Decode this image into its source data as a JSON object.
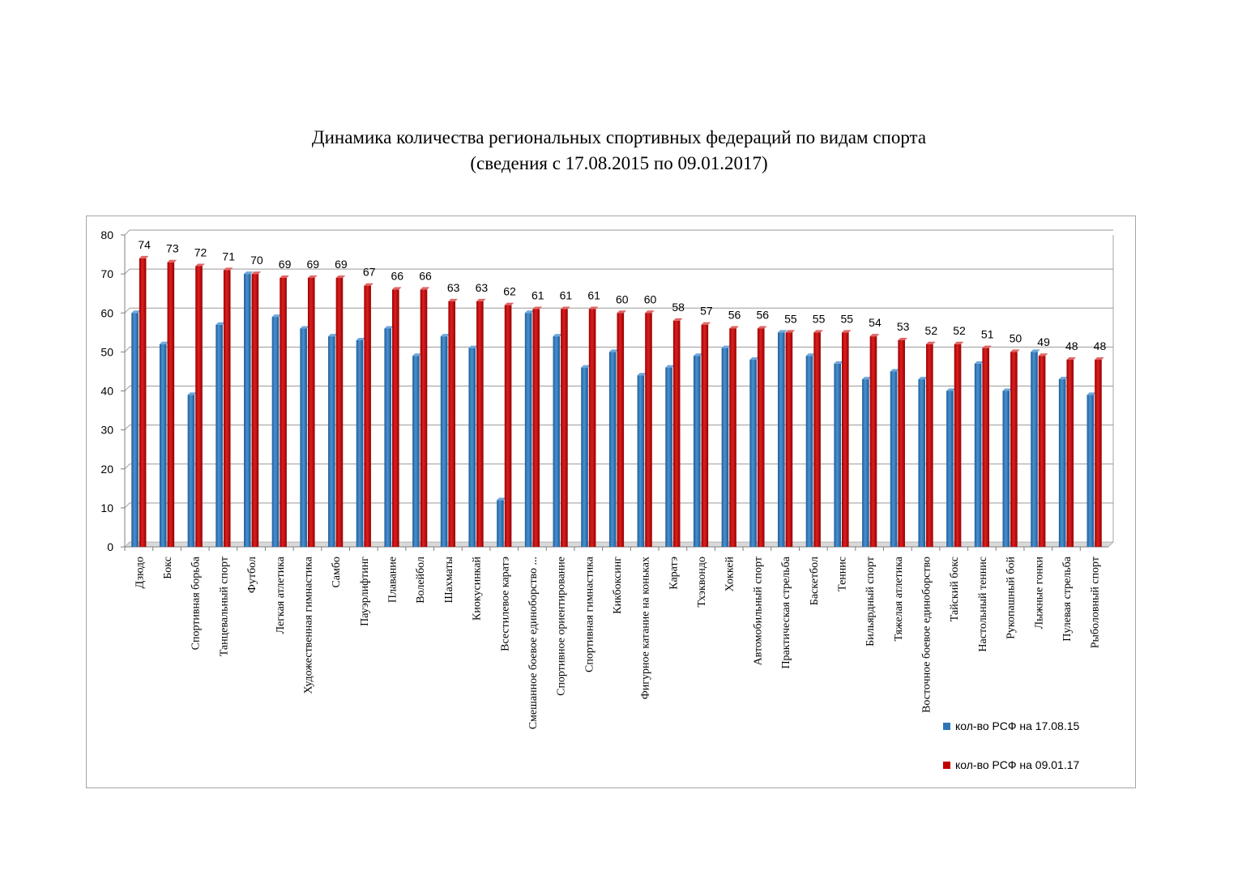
{
  "title": {
    "line1": "Динамика количества региональных спортивных федераций по видам спорта",
    "line2": "(сведения с 17.08.2015 по 09.01.2017)"
  },
  "chart_data": {
    "type": "bar",
    "title": "Динамика количества региональных спортивных федераций по видам спорта (сведения с 17.08.2015 по 09.01.2017)",
    "ylim": [
      0,
      80
    ],
    "yticks": [
      0,
      10,
      20,
      30,
      40,
      50,
      60,
      70,
      80
    ],
    "grid": true,
    "legend_position": "bottom-right",
    "categories": [
      "Дзюдо",
      "Бокс",
      "Спортивная борьба",
      "Танцевальный спорт",
      "Футбол",
      "Легкая атлетика",
      "Художественная гимнастика",
      "Самбо",
      "Пауэрлифтинг",
      "Плавание",
      "Волейбол",
      "Шахматы",
      "Киокусинкай",
      "Всестилевое каратэ",
      "Смешанное боевое единоборство ...",
      "Спортивное ориентирование",
      "Спортивная гимнастика",
      "Кикбоксинг",
      "Фигурное катание на коньках",
      "Каратэ",
      "Тхэквондо",
      "Хоккей",
      "Автомобильный спорт",
      "Практическая стрельба",
      "Баскетбол",
      "Теннис",
      "Бильярдный спорт",
      "Тяжелая атлетика",
      "Восточное боевое единоборство",
      "Тайский бокс",
      "Настольный теннис",
      "Рукопашный бой",
      "Лыжные гонки",
      "Пулевая стрельба",
      "Рыболовный спорт"
    ],
    "series": [
      {
        "name": "кол-во РСФ на 17.08.15",
        "color": "#2e75b6",
        "values": [
          60,
          52,
          39,
          57,
          70,
          59,
          56,
          54,
          53,
          56,
          49,
          54,
          51,
          12,
          60,
          54,
          46,
          50,
          44,
          46,
          49,
          51,
          48,
          55,
          49,
          47,
          43,
          45,
          43,
          40,
          47,
          40,
          50,
          43,
          39
        ]
      },
      {
        "name": "кол-во РСФ на 09.01.17",
        "color": "#c00000",
        "values": [
          74,
          73,
          72,
          71,
          70,
          69,
          69,
          69,
          67,
          66,
          66,
          63,
          63,
          62,
          61,
          61,
          61,
          60,
          60,
          58,
          57,
          56,
          56,
          55,
          55,
          55,
          54,
          53,
          52,
          52,
          51,
          50,
          49,
          48,
          48
        ],
        "data_labels": [
          "74",
          "73",
          "72",
          "71",
          "70",
          "69",
          "69",
          "69",
          "67",
          "66",
          "66",
          "63",
          "63",
          "62",
          "61",
          "61",
          "61",
          "60",
          "60",
          "58",
          "57",
          "56",
          "56",
          "55",
          "55",
          "55",
          "54",
          "53",
          "52",
          "52",
          "51",
          "50",
          "49",
          "48",
          "48"
        ]
      }
    ]
  }
}
